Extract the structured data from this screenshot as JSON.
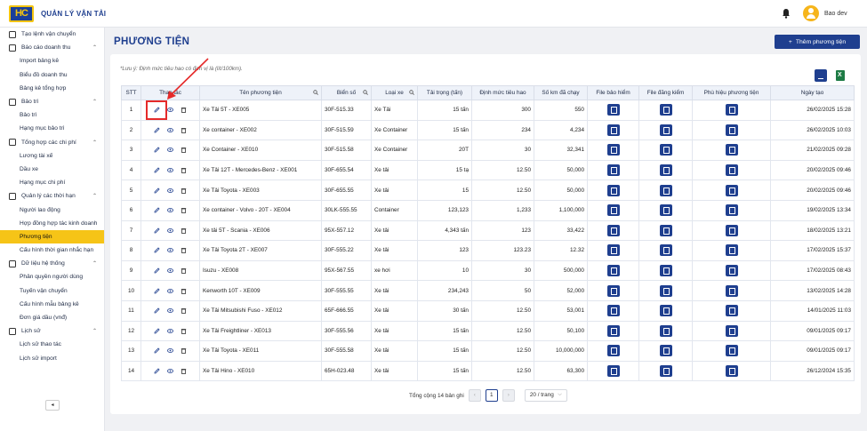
{
  "app": {
    "title": "QUẢN LÝ VẬN TẢI",
    "user": "Bao dev",
    "logo_text": "HC"
  },
  "sidebar": {
    "items": [
      {
        "label": "Tạo lệnh vận chuyển",
        "type": "group",
        "chevron": ""
      },
      {
        "label": "Báo cáo doanh thu",
        "type": "group",
        "chevron": "⌃"
      },
      {
        "label": "Import bảng kê",
        "type": "item"
      },
      {
        "label": "Biểu đồ doanh thu",
        "type": "item"
      },
      {
        "label": "Bảng kê tổng hợp",
        "type": "item"
      },
      {
        "label": "Bảo trì",
        "type": "group",
        "chevron": "⌃"
      },
      {
        "label": "Bảo trì",
        "type": "item"
      },
      {
        "label": "Hạng mục bảo trì",
        "type": "item"
      },
      {
        "label": "Tổng hợp các chi phí",
        "type": "group",
        "chevron": "⌃"
      },
      {
        "label": "Lương tài xế",
        "type": "item"
      },
      {
        "label": "Dầu xe",
        "type": "item"
      },
      {
        "label": "Hạng mục chi phí",
        "type": "item"
      },
      {
        "label": "Quản lý các thời hạn",
        "type": "group",
        "chevron": "⌃"
      },
      {
        "label": "Người lao động",
        "type": "item"
      },
      {
        "label": "Hợp đồng hợp tác kinh doanh",
        "type": "item"
      },
      {
        "label": "Phương tiện",
        "type": "item",
        "active": true
      },
      {
        "label": "Cấu hình thời gian nhắc hạn",
        "type": "item"
      },
      {
        "label": "Dữ liệu hệ thống",
        "type": "group",
        "chevron": "⌃"
      },
      {
        "label": "Phân quyền người dùng",
        "type": "item"
      },
      {
        "label": "Tuyến vận chuyển",
        "type": "item"
      },
      {
        "label": "Cấu hình mẫu bảng kê",
        "type": "item"
      },
      {
        "label": "Đơn giá dầu (vnđ)",
        "type": "item"
      },
      {
        "label": "Lịch sử",
        "type": "group",
        "chevron": "⌃"
      },
      {
        "label": "Lịch sử thao tác",
        "type": "item"
      },
      {
        "label": "Lịch sử import",
        "type": "item"
      }
    ],
    "collapse_icon": "◂"
  },
  "page": {
    "title": "PHƯƠNG TIỆN",
    "add_button": "Thêm phương tiện",
    "note": "*Lưu ý: Định mức tiêu hao có đơn vị là (lít/100km)."
  },
  "table": {
    "headers": [
      "STT",
      "Thao tác",
      "Tên phương tiện",
      "Biển số",
      "Loại xe",
      "Tải trọng (tấn)",
      "Định mức tiêu hao",
      "Số km đã chạy",
      "File bảo hiểm",
      "File đăng kiểm",
      "Phù hiệu phương tiện",
      "Ngày tạo"
    ],
    "rows": [
      [
        "1",
        "Xe Tải 5T - XE005",
        "30F-515.33",
        "Xe Tải",
        "15 tấn",
        "300",
        "550",
        "26/02/2025 15:28"
      ],
      [
        "2",
        "Xe container - XE002",
        "30F-515.59",
        "Xe Container",
        "15 tấn",
        "234",
        "4,234",
        "26/02/2025 10:03"
      ],
      [
        "3",
        "Xe Container - XE010",
        "30F-515.58",
        "Xe Container",
        "20T",
        "30",
        "32,341",
        "21/02/2025 09:28"
      ],
      [
        "4",
        "Xe Tải 12T - Mercedes-Benz - XE001",
        "30F-655.54",
        "Xe tải",
        "15 tạ",
        "12.50",
        "50,000",
        "20/02/2025 09:46"
      ],
      [
        "5",
        "Xe Tải Toyota - XE003",
        "30F-655.55",
        "Xe tải",
        "15",
        "12.50",
        "50,000",
        "20/02/2025 09:46"
      ],
      [
        "6",
        "Xe container - Volvo - 20T - XE004",
        "30LK-555.55",
        "Container",
        "123,123",
        "1,233",
        "1,100,000",
        "19/02/2025 13:34"
      ],
      [
        "7",
        "Xe tải 5T - Scania - XE006",
        "95X-557.12",
        "Xe tải",
        "4,343 tấn",
        "123",
        "33,422",
        "18/02/2025 13:21"
      ],
      [
        "8",
        "Xe Tải Toyota 2T - XE007",
        "30F-555.22",
        "Xe tải",
        "123",
        "123.23",
        "12.32",
        "17/02/2025 15:37"
      ],
      [
        "9",
        "Isuzu - XE008",
        "95X-567.55",
        "xe hơi",
        "10",
        "30",
        "500,000",
        "17/02/2025 08:43"
      ],
      [
        "10",
        "Kenworth 10T - XE009",
        "30F-555.55",
        "Xe tải",
        "234,243",
        "50",
        "52,000",
        "13/02/2025 14:28"
      ],
      [
        "11",
        "Xe Tải Mitsubishi Fuso - XE012",
        "65F-666.55",
        "Xe tải",
        "30 tấn",
        "12.50",
        "53,001",
        "14/01/2025 11:03"
      ],
      [
        "12",
        "Xe Tải Freightliner - XE013",
        "30F-555.56",
        "Xe tải",
        "15 tấn",
        "12.50",
        "50,100",
        "09/01/2025 09:17"
      ],
      [
        "13",
        "Xe Tải Toyota - XE011",
        "30F-555.58",
        "Xe tải",
        "15 tấn",
        "12.50",
        "10,000,000",
        "09/01/2025 09:17"
      ],
      [
        "14",
        "Xe Tải Hino - XE010",
        "65H-023.48",
        "Xe tải",
        "15 tấn",
        "12.50",
        "63,300",
        "26/12/2024 15:35"
      ]
    ]
  },
  "pager": {
    "total": "Tổng cộng 14 bản ghi",
    "prev": "‹",
    "current": "1",
    "next": "›",
    "per_page": "20 / trang"
  },
  "colors": {
    "primary": "#1f3f8f",
    "active": "#f6c417",
    "highlight": "#e52a2a"
  }
}
